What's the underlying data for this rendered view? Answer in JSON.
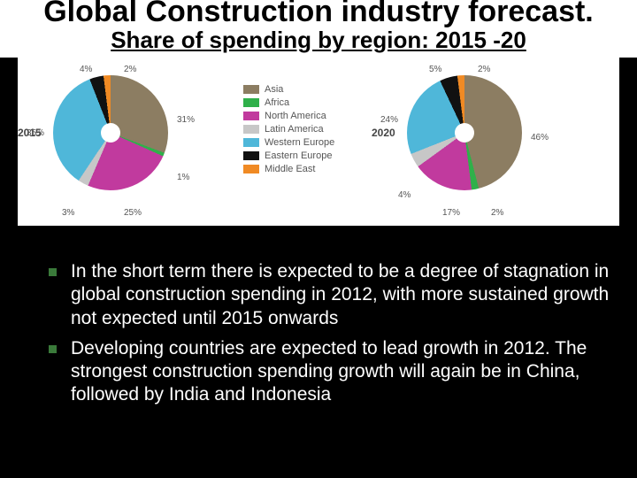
{
  "title": "Global Construction industry forecast.",
  "title_fontsize": 34,
  "subtitle": "Share of spending by region: 2015 -20",
  "subtitle_fontsize": 26,
  "background_color": "#000000",
  "chart_bg": "#ffffff",
  "legend": {
    "items": [
      {
        "label": "Asia",
        "color": "#8c7d62"
      },
      {
        "label": "Africa",
        "color": "#2fb04a"
      },
      {
        "label": "North America",
        "color": "#c13a9e"
      },
      {
        "label": "Latin America",
        "color": "#c7c7c7"
      },
      {
        "label": "Western Europe",
        "color": "#4fb7d9"
      },
      {
        "label": "Eastern Europe",
        "color": "#111111"
      },
      {
        "label": "Middle East",
        "color": "#f08a24"
      }
    ],
    "fontsize": 11
  },
  "pie_2015": {
    "year": "2015",
    "slices": [
      {
        "label": "31%",
        "value": 31,
        "color": "#8c7d62"
      },
      {
        "label": "1%",
        "value": 1,
        "color": "#2fb04a"
      },
      {
        "label": "25%",
        "value": 25,
        "color": "#c13a9e"
      },
      {
        "label": "3%",
        "value": 3,
        "color": "#c7c7c7"
      },
      {
        "label": "35%",
        "value": 35,
        "color": "#4fb7d9"
      },
      {
        "label": "4%",
        "value": 4,
        "color": "#111111"
      },
      {
        "label": "2%",
        "value": 2,
        "color": "#f08a24"
      }
    ],
    "diameter": 130,
    "hole": 22,
    "label_fontsize": 10
  },
  "pie_2020": {
    "year": "2020",
    "slices": [
      {
        "label": "46%",
        "value": 46,
        "color": "#8c7d62"
      },
      {
        "label": "2%",
        "value": 2,
        "color": "#2fb04a"
      },
      {
        "label": "17%",
        "value": 17,
        "color": "#c13a9e"
      },
      {
        "label": "4%",
        "value": 4,
        "color": "#c7c7c7"
      },
      {
        "label": "24%",
        "value": 24,
        "color": "#4fb7d9"
      },
      {
        "label": "5%",
        "value": 5,
        "color": "#111111"
      },
      {
        "label": "2%",
        "value": 2,
        "color": "#f08a24"
      }
    ],
    "diameter": 130,
    "hole": 22,
    "label_fontsize": 10
  },
  "bullets": [
    "In the  short term there is expected to be a degree of stagnation in global construction spending in 2012, with more sustained growth not expected until  2015 onwards",
    "Developing countries are expected to lead growth in 2012. The strongest construction spending growth will again be in China, followed by India and  Indonesia"
  ],
  "bullet_fontsize": 21,
  "bullet_color": "#ffffff",
  "bullet_marker_color": "#3a7a3a"
}
